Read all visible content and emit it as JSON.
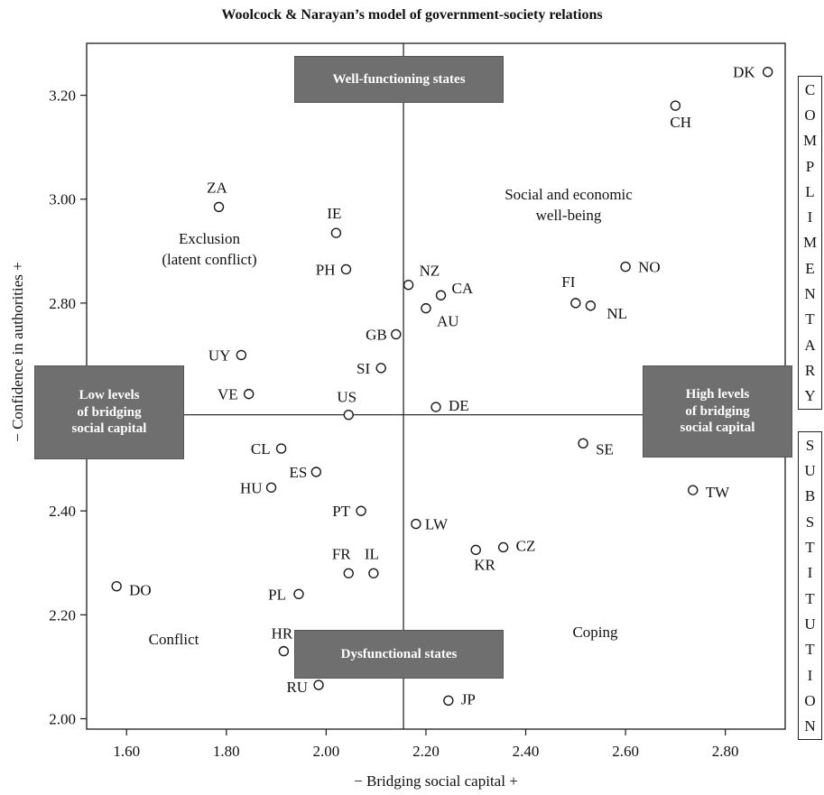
{
  "chart_data": {
    "type": "scatter",
    "title": "Woolcock & Narayan’s model of government-society relations",
    "xlabel": "−   Bridging social capital   +",
    "ylabel": "−   Confidence in authorities   +",
    "xlim": [
      1.52,
      2.92
    ],
    "ylim": [
      1.98,
      3.3
    ],
    "xticks": [
      "1.60",
      "1.80",
      "2.00",
      "2.20",
      "2.40",
      "2.60",
      "2.80"
    ],
    "yticks": [
      "2.00",
      "2.20",
      "2.40",
      "2.60",
      "2.80",
      "3.00",
      "3.20"
    ],
    "grid": false,
    "divider_lines": {
      "x": 2.155,
      "y": 2.585
    },
    "points": [
      {
        "label": "DK",
        "x": 2.885,
        "y": 3.245
      },
      {
        "label": "CH",
        "x": 2.7,
        "y": 3.18
      },
      {
        "label": "ZA",
        "x": 1.785,
        "y": 2.985
      },
      {
        "label": "IE",
        "x": 2.02,
        "y": 2.935
      },
      {
        "label": "NO",
        "x": 2.6,
        "y": 2.87
      },
      {
        "label": "PH",
        "x": 2.04,
        "y": 2.865
      },
      {
        "label": "NZ",
        "x": 2.165,
        "y": 2.835
      },
      {
        "label": "CA",
        "x": 2.23,
        "y": 2.815
      },
      {
        "label": "FI",
        "x": 2.5,
        "y": 2.8
      },
      {
        "label": "NL",
        "x": 2.53,
        "y": 2.795
      },
      {
        "label": "AU",
        "x": 2.2,
        "y": 2.79
      },
      {
        "label": "GB",
        "x": 2.14,
        "y": 2.74
      },
      {
        "label": "UY",
        "x": 1.83,
        "y": 2.7
      },
      {
        "label": "SI",
        "x": 2.11,
        "y": 2.675
      },
      {
        "label": "VE",
        "x": 1.845,
        "y": 2.625
      },
      {
        "label": "DE",
        "x": 2.22,
        "y": 2.6
      },
      {
        "label": "US",
        "x": 2.045,
        "y": 2.585
      },
      {
        "label": "SE",
        "x": 2.515,
        "y": 2.53
      },
      {
        "label": "CL",
        "x": 1.91,
        "y": 2.52
      },
      {
        "label": "ES",
        "x": 1.98,
        "y": 2.475
      },
      {
        "label": "HU",
        "x": 1.89,
        "y": 2.445
      },
      {
        "label": "TW",
        "x": 2.735,
        "y": 2.44
      },
      {
        "label": "PT",
        "x": 2.07,
        "y": 2.4
      },
      {
        "label": "LW",
        "x": 2.18,
        "y": 2.375
      },
      {
        "label": "CZ",
        "x": 2.355,
        "y": 2.33
      },
      {
        "label": "KR",
        "x": 2.3,
        "y": 2.325
      },
      {
        "label": "FR",
        "x": 2.045,
        "y": 2.28
      },
      {
        "label": "IL",
        "x": 2.095,
        "y": 2.28
      },
      {
        "label": "DO",
        "x": 1.58,
        "y": 2.255
      },
      {
        "label": "PL",
        "x": 1.945,
        "y": 2.24
      },
      {
        "label": "HR",
        "x": 1.915,
        "y": 2.13
      },
      {
        "label": "RU",
        "x": 1.985,
        "y": 2.065
      },
      {
        "label": "JP",
        "x": 2.245,
        "y": 2.035
      }
    ],
    "annotations": [
      "Social and economic",
      "well-being",
      "Exclusion",
      "(latent conflict)",
      "Conflict",
      "Coping"
    ]
  },
  "boxes": {
    "well_functioning": "Well-functioning states",
    "dysfunctional": "Dysfunctional states",
    "low_levels": [
      "Low levels",
      "of bridging",
      "social capital"
    ],
    "high_levels": [
      "High levels",
      "of bridging",
      "social capital"
    ]
  },
  "side_labels": {
    "complimentary": [
      "C",
      "O",
      "M",
      "P",
      "L",
      "I",
      "M",
      "E",
      "N",
      "T",
      "A",
      "R",
      "Y"
    ],
    "substitution": [
      "S",
      "U",
      "B",
      "S",
      "T",
      "I",
      "T",
      "U",
      "T",
      "I",
      "O",
      "N"
    ]
  },
  "colors": {
    "box_fill": "#6f6f6f",
    "line": "#1a1a1a"
  }
}
